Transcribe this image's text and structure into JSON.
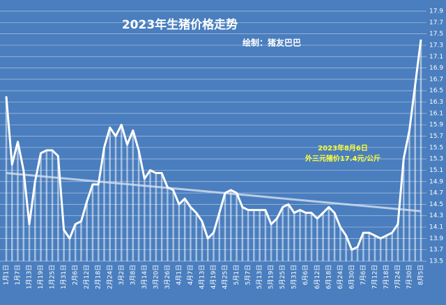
{
  "chart_data": {
    "type": "line",
    "title": "2023年生猪价格走势",
    "subtitle": "绘制：猪友巴巴",
    "annotation": [
      "2023年8月6日",
      "外三元猪价17.4元/公斤"
    ],
    "categories": [
      "1月1日",
      null,
      "1月7日",
      null,
      "1月13日",
      null,
      "1月19日",
      null,
      "1月25日",
      null,
      "1月31日",
      null,
      "2月6日",
      null,
      "2月12日",
      null,
      "2月18日",
      null,
      "2月24日",
      null,
      "3月2日",
      null,
      "3月8日",
      null,
      "3月14日",
      null,
      "3月20日",
      null,
      "3月26日",
      null,
      "4月1日",
      null,
      "4月7日",
      null,
      "4月13日",
      null,
      "4月19日",
      null,
      "4月25日",
      null,
      "5月1日",
      null,
      "5月7日",
      null,
      "5月13日",
      null,
      "5月19日",
      null,
      "5月25日",
      null,
      "5月31日",
      null,
      "6月6日",
      null,
      "6月12日",
      null,
      "6月18日",
      null,
      "6月24日",
      null,
      "6月30日",
      null,
      "7月6日",
      null,
      "7月12日",
      null,
      "7月18日",
      null,
      "7月24日",
      null,
      "7月30日",
      null,
      "8月5日"
    ],
    "values": [
      16.4,
      15.2,
      15.6,
      15.1,
      14.15,
      14.9,
      15.4,
      15.45,
      15.45,
      15.35,
      14.05,
      13.9,
      14.15,
      14.2,
      14.55,
      14.85,
      14.85,
      15.5,
      15.85,
      15.7,
      15.9,
      15.55,
      15.8,
      15.45,
      14.95,
      15.1,
      15.05,
      15.05,
      14.8,
      14.75,
      14.5,
      14.6,
      14.45,
      14.35,
      14.2,
      13.9,
      14.0,
      14.35,
      14.7,
      14.75,
      14.7,
      14.45,
      14.4,
      14.4,
      14.4,
      14.4,
      14.15,
      14.25,
      14.45,
      14.5,
      14.35,
      14.4,
      14.35,
      14.35,
      14.25,
      14.35,
      14.45,
      14.35,
      14.1,
      13.95,
      13.7,
      13.75,
      14.0,
      14.0,
      13.95,
      13.9,
      13.95,
      14.0,
      14.15,
      15.3,
      15.8,
      16.6,
      17.4
    ],
    "color": "#ffffff",
    "trendline": {
      "values": [
        15.05,
        14.38
      ],
      "color": "#d6e0f0"
    },
    "ylim": [
      13.5,
      17.9
    ],
    "yticks": [
      13.5,
      13.7,
      13.9,
      14.1,
      14.3,
      14.5,
      14.7,
      14.9,
      15.1,
      15.3,
      15.5,
      15.7,
      15.9,
      16.1,
      16.3,
      16.5,
      16.7,
      16.9,
      17.1,
      17.3,
      17.5,
      17.7,
      17.9
    ],
    "grid": true
  }
}
